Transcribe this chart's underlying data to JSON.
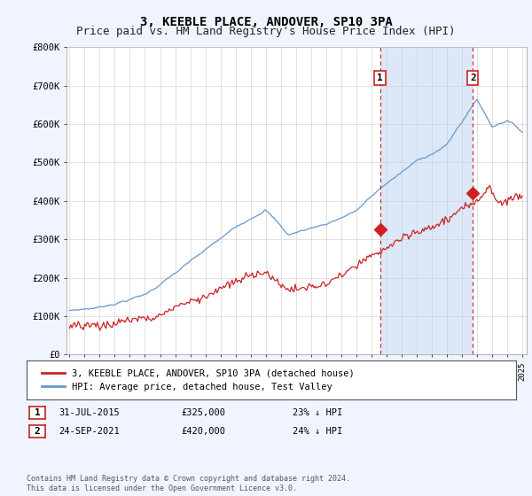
{
  "title": "3, KEEBLE PLACE, ANDOVER, SP10 3PA",
  "subtitle": "Price paid vs. HM Land Registry's House Price Index (HPI)",
  "ylim": [
    0,
    800000
  ],
  "yticks": [
    0,
    100000,
    200000,
    300000,
    400000,
    500000,
    600000,
    700000,
    800000
  ],
  "ytick_labels": [
    "£0",
    "£100K",
    "£200K",
    "£300K",
    "£400K",
    "£500K",
    "£600K",
    "£700K",
    "£800K"
  ],
  "hpi_color": "#6699cc",
  "price_color": "#cc2222",
  "marker1_date": 2015.58,
  "marker1_price": 325000,
  "marker2_date": 2021.73,
  "marker2_price": 420000,
  "marker1_text": "31-JUL-2015",
  "marker1_price_str": "£325,000",
  "marker1_hpi": "23% ↓ HPI",
  "marker2_text": "24-SEP-2021",
  "marker2_price_str": "£420,000",
  "marker2_hpi": "24% ↓ HPI",
  "vline_color": "#cc2222",
  "shade_color": "#dce8f8",
  "background_color": "#f0f4ff",
  "plot_bg_color": "#ffffff",
  "legend_line1": "3, KEEBLE PLACE, ANDOVER, SP10 3PA (detached house)",
  "legend_line2": "HPI: Average price, detached house, Test Valley",
  "footnote": "Contains HM Land Registry data © Crown copyright and database right 2024.\nThis data is licensed under the Open Government Licence v3.0.",
  "title_fontsize": 10,
  "subtitle_fontsize": 9
}
